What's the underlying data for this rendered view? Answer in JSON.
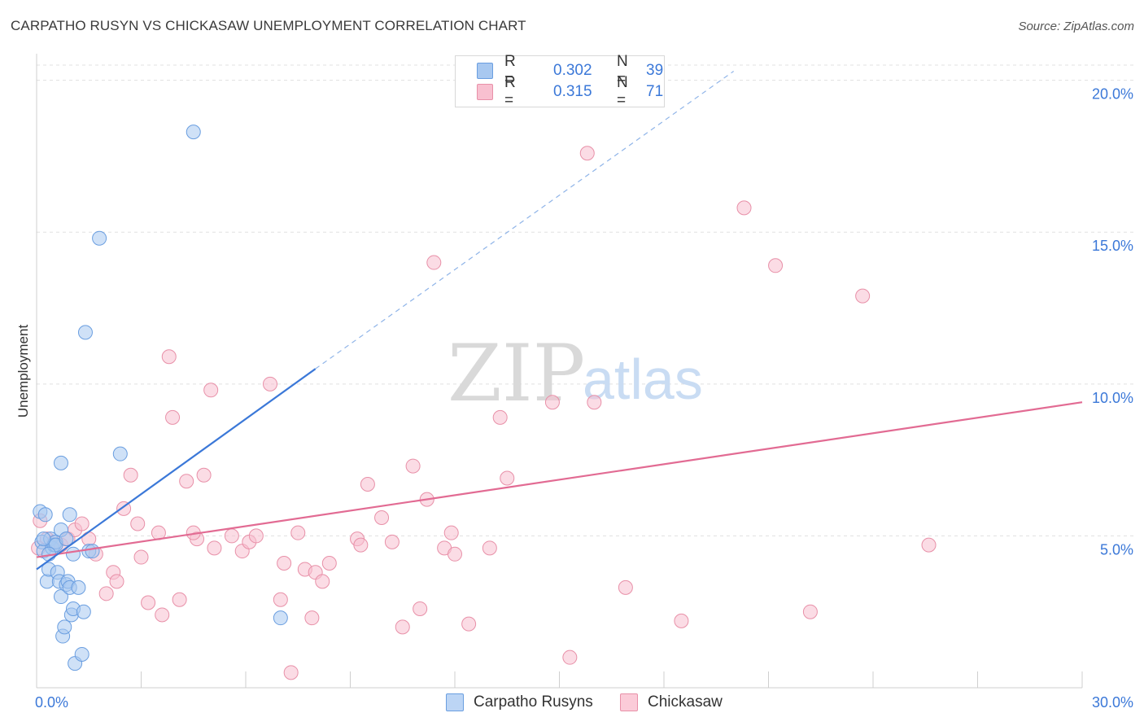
{
  "title": "CARPATHO RUSYN VS CHICKASAW UNEMPLOYMENT CORRELATION CHART",
  "source": "Source: ZipAtlas.com",
  "watermark": {
    "zip": "ZIP",
    "atlas": "atlas"
  },
  "legend": {
    "rows": [
      {
        "r_label": "R =",
        "r_value": "0.302",
        "n_label": "N =",
        "n_value": "39",
        "color": "#a8c8f0",
        "border": "#6a9ee0"
      },
      {
        "r_label": "R =",
        "r_value": "0.315",
        "n_label": "N =",
        "n_value": "71",
        "color": "#f8c0d0",
        "border": "#e890a8"
      }
    ]
  },
  "bottom_legend": [
    {
      "label": "Carpatho Rusyns",
      "color": "#bcd5f5",
      "border": "#6a9ee0"
    },
    {
      "label": "Chickasaw",
      "color": "#fbcbd8",
      "border": "#e890a8"
    }
  ],
  "chart_data": {
    "type": "scatter",
    "title": "CARPATHO RUSYN VS CHICKASAW UNEMPLOYMENT CORRELATION CHART",
    "xlabel": "",
    "ylabel": "Unemployment",
    "xlim": [
      0,
      30
    ],
    "ylim": [
      0,
      20.5
    ],
    "x_tick_labels": [
      "0.0%",
      "30.0%"
    ],
    "y_ticks": [
      5,
      10,
      15,
      20
    ],
    "y_tick_labels": [
      "5.0%",
      "10.0%",
      "15.0%",
      "20.0%"
    ],
    "grid": true,
    "series": [
      {
        "name": "Carpatho Rusyns",
        "color": "#3b78d8",
        "fill": "#a8c8f0",
        "r": 0.302,
        "n": 39,
        "trend": {
          "x0": 0.0,
          "y0": 3.9,
          "x1": 8.0,
          "y1": 10.5,
          "dash_to_x": 20.0,
          "dash_to_y": 20.3
        },
        "points": [
          [
            0.1,
            5.8
          ],
          [
            0.15,
            4.8
          ],
          [
            0.2,
            4.5
          ],
          [
            0.25,
            5.7
          ],
          [
            0.3,
            3.5
          ],
          [
            0.35,
            3.9
          ],
          [
            0.4,
            4.9
          ],
          [
            0.45,
            4.6
          ],
          [
            0.5,
            4.7
          ],
          [
            0.55,
            4.8
          ],
          [
            0.6,
            3.8
          ],
          [
            0.65,
            3.5
          ],
          [
            0.7,
            3.0
          ],
          [
            0.7,
            5.2
          ],
          [
            0.75,
            1.7
          ],
          [
            0.7,
            7.4
          ],
          [
            0.8,
            2.0
          ],
          [
            0.85,
            3.4
          ],
          [
            0.9,
            3.5
          ],
          [
            0.95,
            5.7
          ],
          [
            0.95,
            3.3
          ],
          [
            1.0,
            2.4
          ],
          [
            1.05,
            2.6
          ],
          [
            1.05,
            4.4
          ],
          [
            1.1,
            0.8
          ],
          [
            1.2,
            3.3
          ],
          [
            1.3,
            1.1
          ],
          [
            1.35,
            2.5
          ],
          [
            1.4,
            11.7
          ],
          [
            1.5,
            4.5
          ],
          [
            1.6,
            4.5
          ],
          [
            1.8,
            14.8
          ],
          [
            2.4,
            7.7
          ],
          [
            4.5,
            18.3
          ],
          [
            7.0,
            2.3
          ],
          [
            0.2,
            4.9
          ],
          [
            0.55,
            4.7
          ],
          [
            0.85,
            4.9
          ],
          [
            0.35,
            4.4
          ]
        ]
      },
      {
        "name": "Chickasaw",
        "color": "#e26b93",
        "fill": "#f8c0d0",
        "r": 0.315,
        "n": 71,
        "trend": {
          "x0": 0.0,
          "y0": 4.3,
          "x1": 30.0,
          "y1": 9.4
        },
        "points": [
          [
            0.1,
            5.5
          ],
          [
            0.3,
            4.9
          ],
          [
            0.5,
            4.8
          ],
          [
            0.7,
            4.7
          ],
          [
            0.9,
            4.9
          ],
          [
            1.1,
            5.2
          ],
          [
            1.3,
            5.4
          ],
          [
            1.5,
            4.9
          ],
          [
            1.7,
            4.4
          ],
          [
            2.0,
            3.1
          ],
          [
            2.2,
            3.8
          ],
          [
            2.3,
            3.5
          ],
          [
            2.5,
            5.9
          ],
          [
            2.7,
            7.0
          ],
          [
            2.9,
            5.4
          ],
          [
            3.0,
            4.3
          ],
          [
            3.2,
            2.8
          ],
          [
            3.5,
            5.1
          ],
          [
            3.6,
            2.4
          ],
          [
            3.8,
            10.9
          ],
          [
            3.9,
            8.9
          ],
          [
            4.1,
            2.9
          ],
          [
            4.3,
            6.8
          ],
          [
            4.6,
            4.9
          ],
          [
            4.5,
            5.1
          ],
          [
            4.8,
            7.0
          ],
          [
            5.0,
            9.8
          ],
          [
            5.1,
            4.6
          ],
          [
            5.6,
            5.0
          ],
          [
            5.9,
            4.5
          ],
          [
            6.1,
            4.8
          ],
          [
            6.3,
            5.0
          ],
          [
            6.7,
            10.0
          ],
          [
            7.0,
            2.9
          ],
          [
            7.1,
            4.1
          ],
          [
            7.3,
            0.5
          ],
          [
            7.5,
            5.1
          ],
          [
            7.7,
            3.9
          ],
          [
            7.9,
            2.3
          ],
          [
            8.0,
            3.8
          ],
          [
            8.2,
            3.5
          ],
          [
            8.4,
            4.1
          ],
          [
            9.2,
            4.9
          ],
          [
            9.3,
            4.7
          ],
          [
            9.5,
            6.7
          ],
          [
            9.9,
            5.6
          ],
          [
            10.2,
            4.8
          ],
          [
            10.5,
            2.0
          ],
          [
            10.8,
            7.3
          ],
          [
            11.0,
            2.6
          ],
          [
            11.2,
            6.2
          ],
          [
            11.4,
            14.0
          ],
          [
            11.7,
            4.6
          ],
          [
            11.9,
            5.1
          ],
          [
            12.0,
            4.4
          ],
          [
            12.4,
            2.1
          ],
          [
            13.0,
            4.6
          ],
          [
            13.3,
            8.9
          ],
          [
            13.5,
            6.9
          ],
          [
            14.8,
            9.4
          ],
          [
            15.3,
            1.0
          ],
          [
            15.8,
            17.6
          ],
          [
            16.0,
            9.4
          ],
          [
            16.9,
            3.3
          ],
          [
            18.5,
            2.2
          ],
          [
            20.3,
            15.8
          ],
          [
            21.2,
            13.9
          ],
          [
            22.2,
            2.5
          ],
          [
            23.7,
            12.9
          ],
          [
            25.6,
            4.7
          ],
          [
            0.05,
            4.6
          ]
        ]
      }
    ]
  }
}
